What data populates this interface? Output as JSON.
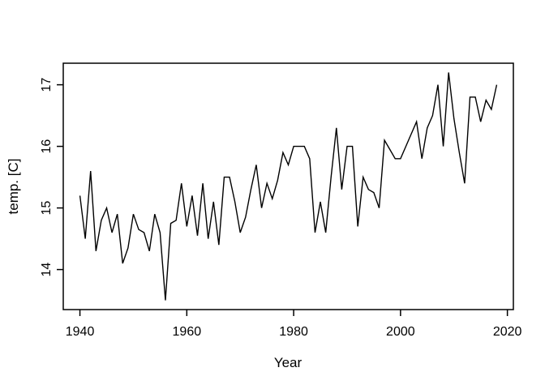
{
  "colors": {
    "background": "#ffffff",
    "line": "#000000",
    "axis": "#000000",
    "text": "#000000"
  },
  "chart_data": {
    "type": "line",
    "title": "",
    "xlabel": "Year",
    "ylabel": "temp. [C]",
    "x_ticks": [
      1940,
      1960,
      1980,
      2000,
      2020
    ],
    "y_ticks": [
      14,
      15,
      16,
      17
    ],
    "xlim": [
      1936.88,
      2021.12
    ],
    "ylim": [
      13.35,
      17.35
    ],
    "grid": false,
    "legend": false,
    "x": [
      1940,
      1941,
      1942,
      1943,
      1944,
      1945,
      1946,
      1947,
      1948,
      1949,
      1950,
      1951,
      1952,
      1953,
      1954,
      1955,
      1956,
      1957,
      1958,
      1959,
      1960,
      1961,
      1962,
      1963,
      1964,
      1965,
      1966,
      1967,
      1968,
      1969,
      1970,
      1971,
      1972,
      1973,
      1974,
      1975,
      1976,
      1977,
      1978,
      1979,
      1980,
      1981,
      1982,
      1983,
      1984,
      1985,
      1986,
      1987,
      1988,
      1989,
      1990,
      1991,
      1992,
      1993,
      1994,
      1995,
      1996,
      1997,
      1998,
      1999,
      2000,
      2001,
      2002,
      2003,
      2004,
      2005,
      2006,
      2007,
      2008,
      2009,
      2010,
      2011,
      2012,
      2013,
      2014,
      2015,
      2016,
      2017,
      2018
    ],
    "values": [
      15.2,
      14.5,
      15.6,
      14.3,
      14.8,
      15.0,
      14.6,
      14.9,
      14.1,
      14.35,
      14.9,
      14.65,
      14.6,
      14.3,
      14.9,
      14.6,
      13.5,
      14.75,
      14.8,
      15.4,
      14.7,
      15.2,
      14.55,
      15.4,
      14.5,
      15.1,
      14.4,
      15.5,
      15.5,
      15.1,
      14.6,
      14.85,
      15.3,
      15.7,
      15.0,
      15.4,
      15.15,
      15.45,
      15.9,
      15.7,
      16.0,
      16.0,
      16.0,
      15.8,
      14.6,
      15.1,
      14.6,
      15.5,
      16.3,
      15.3,
      16.0,
      16.0,
      14.7,
      15.5,
      15.3,
      15.25,
      15.0,
      16.1,
      15.95,
      15.8,
      15.8,
      16.0,
      16.2,
      16.4,
      15.8,
      16.3,
      16.5,
      17.0,
      16.0,
      17.2,
      16.45,
      15.9,
      15.4,
      16.8,
      16.8,
      16.4,
      16.75,
      16.6,
      17.0
    ]
  }
}
